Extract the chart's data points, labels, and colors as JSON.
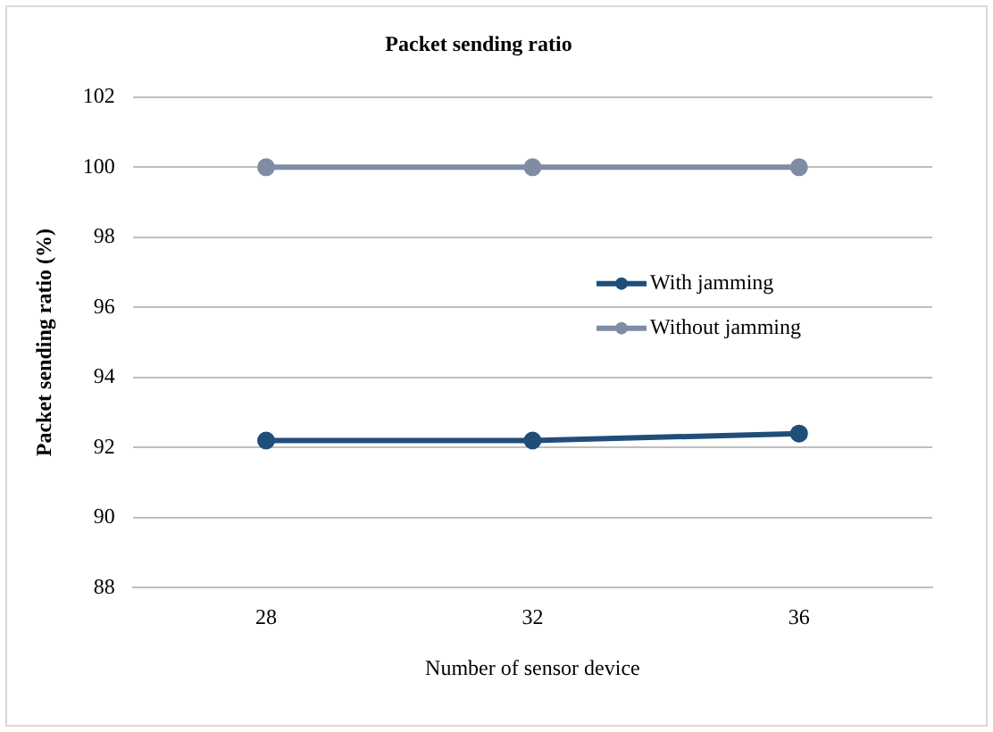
{
  "chart_data": {
    "type": "line",
    "title": "Packet sending ratio",
    "xlabel": "Number of sensor device",
    "ylabel": "Packet sending ratio (%)",
    "categories": [
      "28",
      "32",
      "36"
    ],
    "series": [
      {
        "name": "With jamming",
        "color": "#1f4e79",
        "values": [
          92.2,
          92.2,
          92.4
        ]
      },
      {
        "name": "Without jamming",
        "color": "#7f8ca3",
        "values": [
          100,
          100,
          100
        ]
      }
    ],
    "ylim": [
      88,
      102
    ],
    "yticks": [
      88,
      90,
      92,
      94,
      96,
      98,
      100,
      102
    ],
    "grid": "y",
    "legend": "right",
    "marker": "circle",
    "line_style": "solid"
  }
}
